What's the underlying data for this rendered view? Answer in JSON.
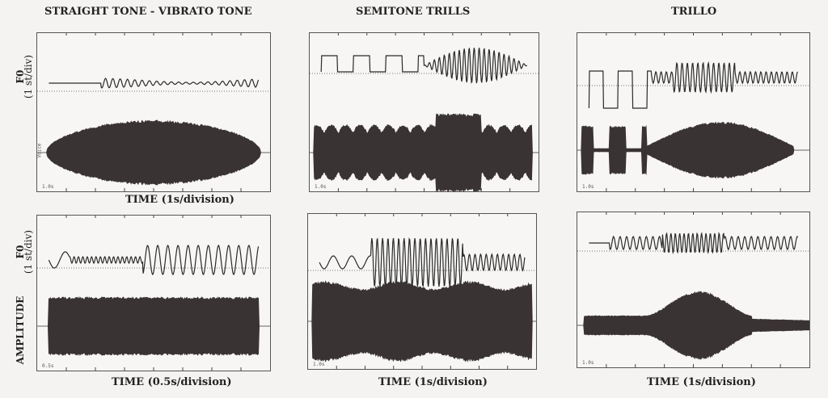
{
  "columns": [
    {
      "title": "STRAIGHT TONE - VIBRATO TONE",
      "top_time_label": "TIME (1s/division)",
      "bottom_time_label": "TIME (0.5s/division)",
      "top_scale": "1.0s",
      "bottom_scale": "0.5s",
      "voice_label": "Voice"
    },
    {
      "title": "SEMITONE TRILLS",
      "top_scale": "1.0s",
      "bottom_scale": "1.0s",
      "bottom_time_label": "TIME (1s/division)"
    },
    {
      "title": "TRILLO",
      "top_scale": "1.0s",
      "bottom_scale": "1.0s",
      "bottom_time_label": "TIME  (1s/division)"
    }
  ],
  "axis_labels": {
    "f0": "F0",
    "f0_unit": "(1 st/div)",
    "amplitude": "AMPLITUDE"
  },
  "colors": {
    "trace": "#2a2a2a",
    "fill": "#3a3334"
  }
}
